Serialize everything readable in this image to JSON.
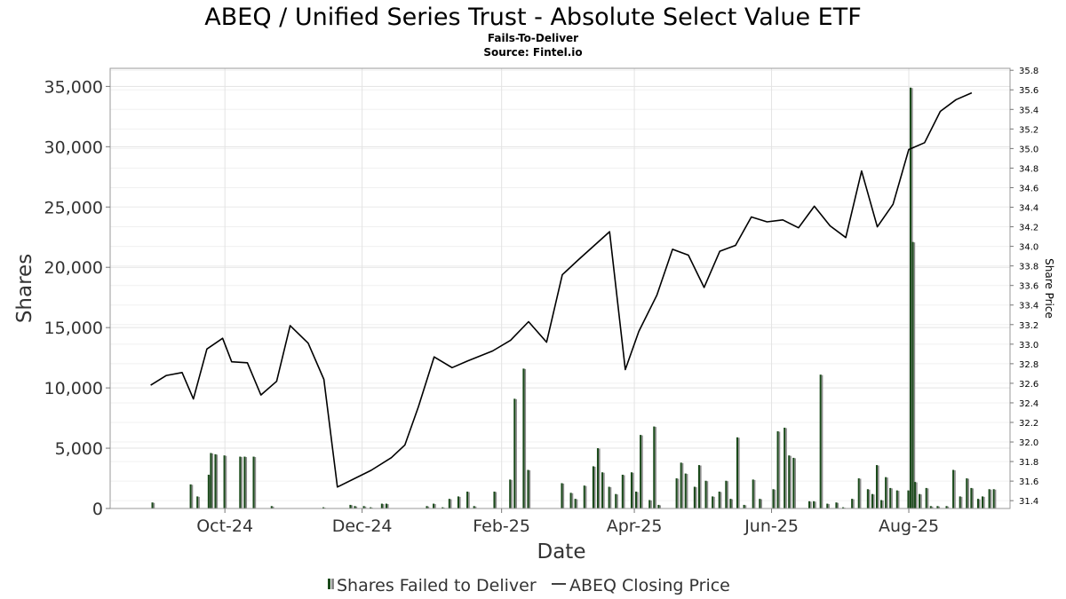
{
  "chart_data": {
    "type": "bar+line",
    "title": "ABEQ / Unified Series Trust - Absolute Select Value ETF",
    "subtitle": "Fails-To-Deliver",
    "source": "Source: Fintel.io",
    "xlabel": "Date",
    "ylabel": "Shares",
    "y2label": "Share Price",
    "x_ticks": [
      "Oct-24",
      "Dec-24",
      "Feb-25",
      "Apr-25",
      "Jun-25",
      "Aug-25"
    ],
    "y_ticks": [
      "0",
      "5,000",
      "10,000",
      "15,000",
      "20,000",
      "25,000",
      "30,000",
      "35,000"
    ],
    "y2_ticks": [
      "31.4",
      "31.6",
      "31.8",
      "32.0",
      "32.2",
      "32.4",
      "32.6",
      "32.8",
      "33.0",
      "33.2",
      "33.4",
      "33.6",
      "33.8",
      "34.0",
      "34.2",
      "34.4",
      "34.6",
      "34.8",
      "35.0",
      "35.2",
      "35.4",
      "35.6",
      "35.8"
    ],
    "ylim": [
      0,
      36500
    ],
    "y2lim": [
      31.32,
      35.82
    ],
    "xlim": [
      "2024-08-11",
      "2025-09-15"
    ],
    "grid": true,
    "legend_position": "bottom",
    "series": [
      {
        "name": "Shares Failed to Deliver",
        "type": "bar",
        "color": "#1a4a1a",
        "points": [
          [
            "2024-08-30",
            500
          ],
          [
            "2024-09-16",
            2000
          ],
          [
            "2024-09-19",
            1000
          ],
          [
            "2024-09-24",
            2800
          ],
          [
            "2024-09-25",
            4600
          ],
          [
            "2024-09-27",
            4500
          ],
          [
            "2024-10-01",
            4400
          ],
          [
            "2024-10-08",
            4300
          ],
          [
            "2024-10-10",
            4300
          ],
          [
            "2024-10-14",
            4300
          ],
          [
            "2024-10-22",
            200
          ],
          [
            "2024-11-14",
            100
          ],
          [
            "2024-11-26",
            300
          ],
          [
            "2024-11-28",
            200
          ],
          [
            "2024-12-02",
            200
          ],
          [
            "2024-12-05",
            100
          ],
          [
            "2024-12-10",
            400
          ],
          [
            "2024-12-12",
            400
          ],
          [
            "2024-12-30",
            200
          ],
          [
            "2025-01-02",
            400
          ],
          [
            "2025-01-06",
            100
          ],
          [
            "2025-01-09",
            800
          ],
          [
            "2025-01-13",
            1000
          ],
          [
            "2025-01-17",
            1400
          ],
          [
            "2025-01-20",
            200
          ],
          [
            "2025-01-29",
            1400
          ],
          [
            "2025-02-05",
            2400
          ],
          [
            "2025-02-07",
            9100
          ],
          [
            "2025-02-11",
            11600
          ],
          [
            "2025-02-13",
            3200
          ],
          [
            "2025-02-28",
            2100
          ],
          [
            "2025-03-04",
            1300
          ],
          [
            "2025-03-06",
            800
          ],
          [
            "2025-03-10",
            1900
          ],
          [
            "2025-03-14",
            3500
          ],
          [
            "2025-03-16",
            5000
          ],
          [
            "2025-03-18",
            3000
          ],
          [
            "2025-03-21",
            1800
          ],
          [
            "2025-03-24",
            1200
          ],
          [
            "2025-03-27",
            2800
          ],
          [
            "2025-03-31",
            3000
          ],
          [
            "2025-04-02",
            1400
          ],
          [
            "2025-04-04",
            6100
          ],
          [
            "2025-04-08",
            700
          ],
          [
            "2025-04-10",
            6800
          ],
          [
            "2025-04-12",
            300
          ],
          [
            "2025-04-20",
            2500
          ],
          [
            "2025-04-22",
            3800
          ],
          [
            "2025-04-24",
            2900
          ],
          [
            "2025-04-28",
            1800
          ],
          [
            "2025-04-30",
            3600
          ],
          [
            "2025-05-03",
            2300
          ],
          [
            "2025-05-06",
            1000
          ],
          [
            "2025-05-09",
            1400
          ],
          [
            "2025-05-12",
            2300
          ],
          [
            "2025-05-14",
            800
          ],
          [
            "2025-05-17",
            5900
          ],
          [
            "2025-05-20",
            300
          ],
          [
            "2025-05-24",
            2400
          ],
          [
            "2025-05-27",
            800
          ],
          [
            "2025-06-02",
            1600
          ],
          [
            "2025-06-04",
            6400
          ],
          [
            "2025-06-07",
            6700
          ],
          [
            "2025-06-09",
            4400
          ],
          [
            "2025-06-11",
            4200
          ],
          [
            "2025-06-18",
            600
          ],
          [
            "2025-06-20",
            600
          ],
          [
            "2025-06-23",
            11100
          ],
          [
            "2025-06-26",
            400
          ],
          [
            "2025-06-30",
            500
          ],
          [
            "2025-07-03",
            100
          ],
          [
            "2025-07-07",
            800
          ],
          [
            "2025-07-10",
            2500
          ],
          [
            "2025-07-14",
            1600
          ],
          [
            "2025-07-16",
            1200
          ],
          [
            "2025-07-18",
            3600
          ],
          [
            "2025-07-20",
            700
          ],
          [
            "2025-07-22",
            2600
          ],
          [
            "2025-07-24",
            1700
          ],
          [
            "2025-07-27",
            1500
          ],
          [
            "2025-08-01",
            1500
          ],
          [
            "2025-08-02",
            34900
          ],
          [
            "2025-08-03",
            22100
          ],
          [
            "2025-08-04",
            2200
          ],
          [
            "2025-08-06",
            1200
          ],
          [
            "2025-08-09",
            1700
          ],
          [
            "2025-08-11",
            200
          ],
          [
            "2025-08-14",
            200
          ],
          [
            "2025-08-18",
            200
          ],
          [
            "2025-08-21",
            3200
          ],
          [
            "2025-08-24",
            1000
          ],
          [
            "2025-08-27",
            2500
          ],
          [
            "2025-08-29",
            1700
          ],
          [
            "2025-09-01",
            800
          ],
          [
            "2025-09-03",
            1000
          ],
          [
            "2025-09-06",
            1600
          ],
          [
            "2025-09-08",
            1600
          ]
        ]
      },
      {
        "name": "ABEQ Closing Price",
        "type": "line",
        "color": "#000000",
        "points": [
          [
            "2024-08-29",
            32.58
          ],
          [
            "2024-09-05",
            32.68
          ],
          [
            "2024-09-12",
            32.71
          ],
          [
            "2024-09-17",
            32.44
          ],
          [
            "2024-09-23",
            32.95
          ],
          [
            "2024-09-30",
            33.06
          ],
          [
            "2024-10-04",
            32.82
          ],
          [
            "2024-10-11",
            32.81
          ],
          [
            "2024-10-17",
            32.48
          ],
          [
            "2024-10-24",
            32.62
          ],
          [
            "2024-10-30",
            33.19
          ],
          [
            "2024-11-07",
            33.01
          ],
          [
            "2024-11-14",
            32.64
          ],
          [
            "2024-11-20",
            31.54
          ],
          [
            "2024-12-05",
            31.71
          ],
          [
            "2024-12-14",
            31.84
          ],
          [
            "2024-12-20",
            31.97
          ],
          [
            "2024-12-26",
            32.36
          ],
          [
            "2025-01-02",
            32.87
          ],
          [
            "2025-01-10",
            32.76
          ],
          [
            "2025-01-17",
            32.83
          ],
          [
            "2025-01-28",
            32.93
          ],
          [
            "2025-02-05",
            33.04
          ],
          [
            "2025-02-13",
            33.23
          ],
          [
            "2025-02-21",
            33.02
          ],
          [
            "2025-02-28",
            33.71
          ],
          [
            "2025-03-07",
            33.86
          ],
          [
            "2025-03-21",
            34.15
          ],
          [
            "2025-03-28",
            32.74
          ],
          [
            "2025-04-03",
            33.13
          ],
          [
            "2025-04-11",
            33.5
          ],
          [
            "2025-04-18",
            33.97
          ],
          [
            "2025-04-25",
            33.91
          ],
          [
            "2025-05-02",
            33.58
          ],
          [
            "2025-05-09",
            33.95
          ],
          [
            "2025-05-16",
            34.01
          ],
          [
            "2025-05-23",
            34.3
          ],
          [
            "2025-05-30",
            34.25
          ],
          [
            "2025-06-06",
            34.27
          ],
          [
            "2025-06-13",
            34.19
          ],
          [
            "2025-06-20",
            34.41
          ],
          [
            "2025-06-27",
            34.21
          ],
          [
            "2025-07-04",
            34.09
          ],
          [
            "2025-07-11",
            34.77
          ],
          [
            "2025-07-18",
            34.2
          ],
          [
            "2025-07-25",
            34.43
          ],
          [
            "2025-08-01",
            34.99
          ],
          [
            "2025-08-08",
            35.06
          ],
          [
            "2025-08-15",
            35.38
          ],
          [
            "2025-08-22",
            35.5
          ],
          [
            "2025-08-29",
            35.57
          ]
        ]
      }
    ]
  }
}
